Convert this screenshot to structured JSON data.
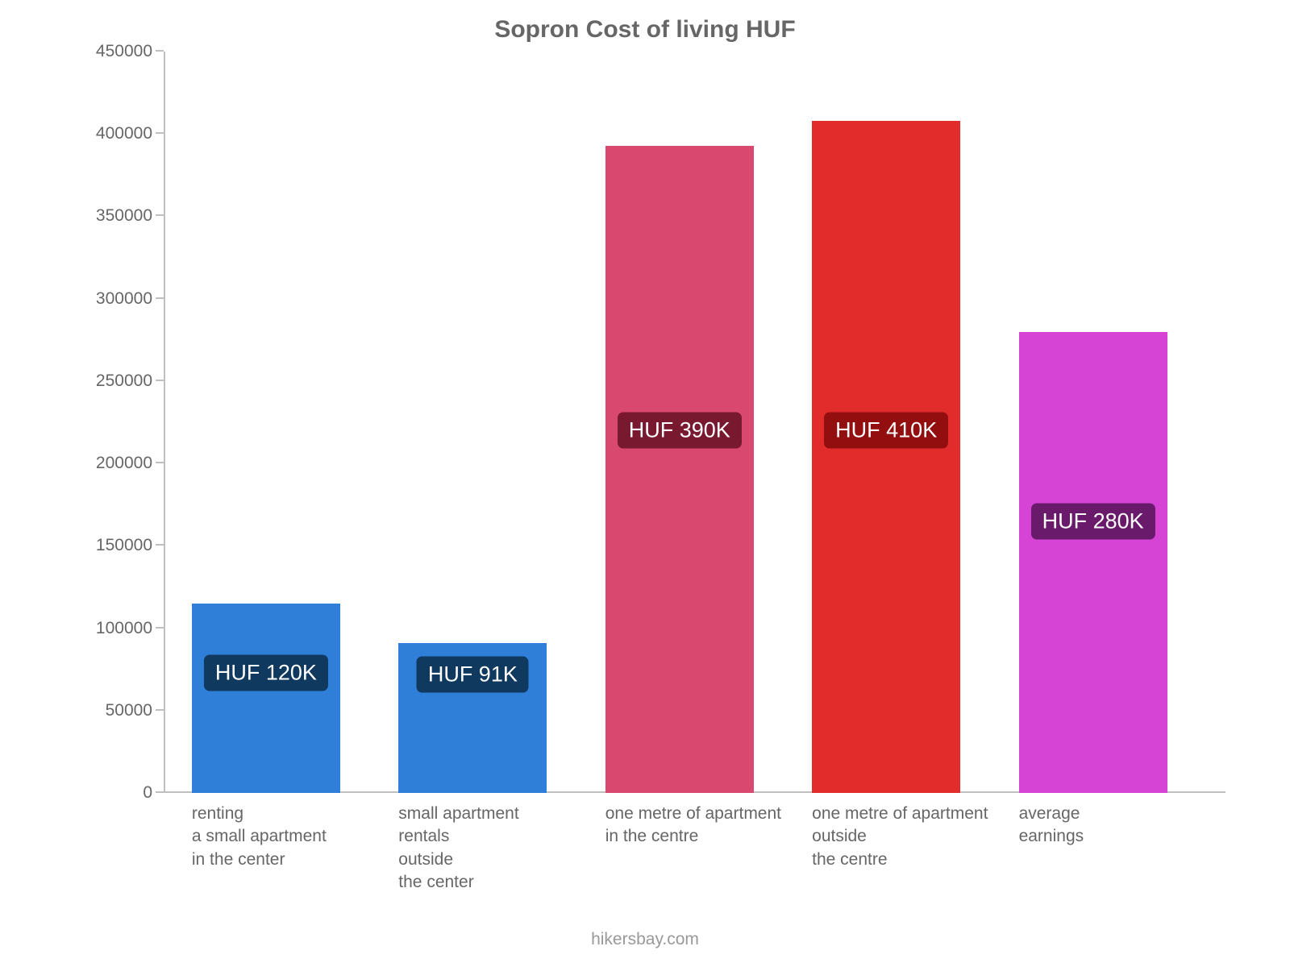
{
  "chart": {
    "type": "bar",
    "title": "Sopron Cost of living HUF",
    "title_color": "#666666",
    "title_fontsize": 30,
    "background_color": "#ffffff",
    "axis_color": "#bfbfbf",
    "tick_label_color": "#666666",
    "tick_label_fontsize": 21,
    "y": {
      "min": 0,
      "max": 450000,
      "tick_step": 50000,
      "ticks": [
        0,
        50000,
        100000,
        150000,
        200000,
        250000,
        300000,
        350000,
        400000,
        450000
      ]
    },
    "bar_width_pct": 14.0,
    "bar_gap_pct": 5.5,
    "left_offset_pct": 2.5,
    "value_badge_fontsize": 27,
    "value_badge_text_color": "#ffffff",
    "value_badge_radius": 7,
    "bars": [
      {
        "category_lines": [
          "renting",
          "a small apartment",
          "in the center"
        ],
        "value": 115000,
        "value_label": "HUF 120K",
        "bar_color": "#2f7ed8",
        "badge_bg": "#10395f",
        "badge_y_value": 73000
      },
      {
        "category_lines": [
          "small apartment",
          "rentals",
          "outside",
          "the center"
        ],
        "value": 91000,
        "value_label": "HUF 91K",
        "bar_color": "#2f7ed8",
        "badge_bg": "#10395f",
        "badge_y_value": 72000
      },
      {
        "category_lines": [
          "one metre of apartment",
          "in the centre"
        ],
        "value": 393000,
        "value_label": "HUF 390K",
        "bar_color": "#d9496f",
        "badge_bg": "#78192f",
        "badge_y_value": 220000
      },
      {
        "category_lines": [
          "one metre of apartment",
          "outside",
          "the centre"
        ],
        "value": 408000,
        "value_label": "HUF 410K",
        "bar_color": "#e22c2c",
        "badge_bg": "#930e0e",
        "badge_y_value": 220000
      },
      {
        "category_lines": [
          "average",
          "earnings"
        ],
        "value": 280000,
        "value_label": "HUF 280K",
        "bar_color": "#d644d6",
        "badge_bg": "#6a1a6a",
        "badge_y_value": 165000
      }
    ],
    "footer": "hikersbay.com",
    "footer_color": "#999999",
    "footer_fontsize": 21
  }
}
